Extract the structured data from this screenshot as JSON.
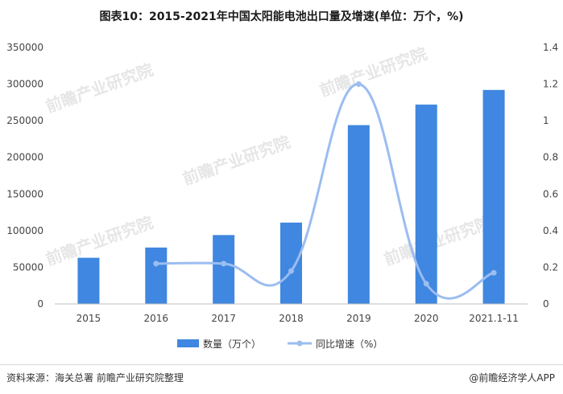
{
  "title": "图表10：2015-2021年中国太阳能电池出口量及增速(单位：万个，%)",
  "source": "资料来源：海关总署 前瞻产业研究院整理",
  "credit": "@前瞻经济学人APP",
  "watermark": "前瞻产业研究院",
  "colors": {
    "bar": "#3f87e0",
    "line": "#9bbdf0"
  },
  "chart_data": {
    "type": "bar",
    "categories": [
      "2015",
      "2016",
      "2017",
      "2018",
      "2019",
      "2020",
      "2021.1-11"
    ],
    "series": [
      {
        "name": "数量（万个）",
        "type": "bar",
        "axis": "left",
        "values": [
          63000,
          77000,
          94000,
          111000,
          244000,
          272000,
          292000
        ]
      },
      {
        "name": "同比增速（%）",
        "type": "line",
        "axis": "right",
        "values": [
          null,
          0.22,
          0.22,
          0.18,
          1.2,
          0.11,
          0.17
        ]
      }
    ],
    "y_left": {
      "min": 0,
      "max": 350000,
      "ticks": [
        "0",
        "50000",
        "100000",
        "150000",
        "200000",
        "250000",
        "300000",
        "350000"
      ]
    },
    "y_right": {
      "min": 0,
      "max": 1.4,
      "ticks": [
        "0",
        "0.2",
        "0.4",
        "0.6",
        "0.8",
        "1",
        "1.2",
        "1.4"
      ]
    },
    "grid": false,
    "legend": "bottom"
  }
}
